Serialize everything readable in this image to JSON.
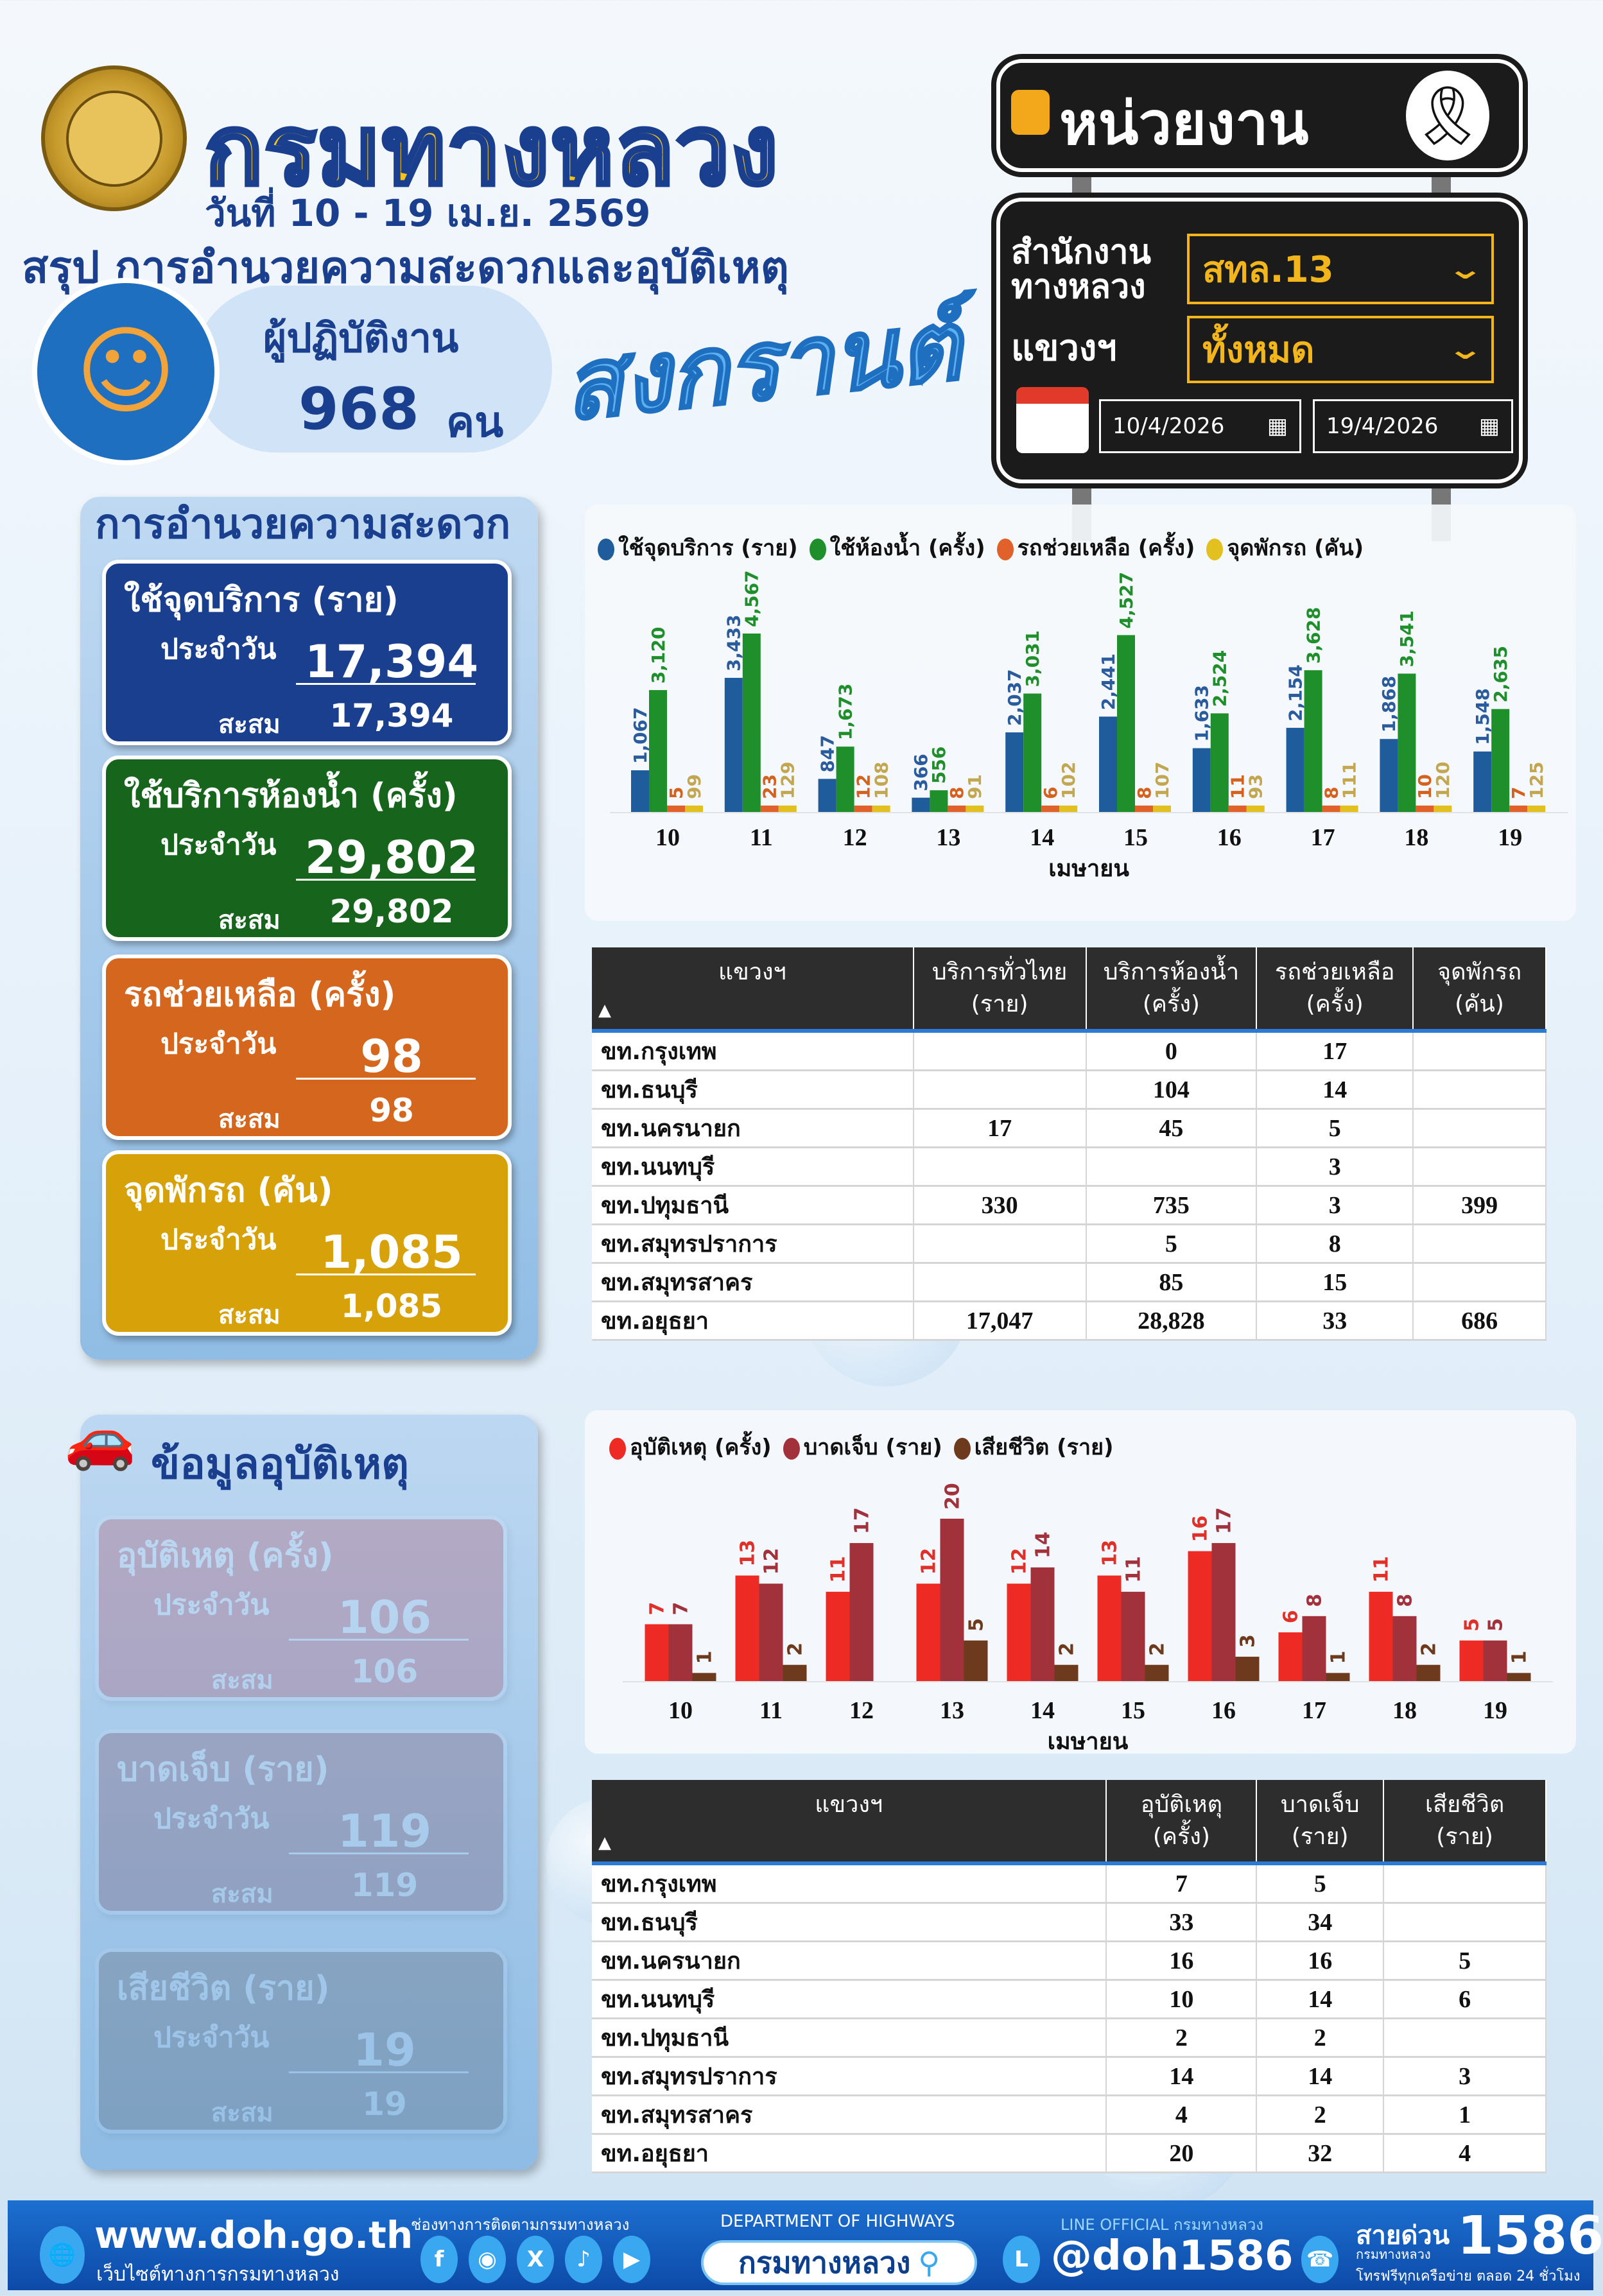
{
  "header": {
    "title": "กรมทางหลวง",
    "date_range": "วันที่ 10 - 19 เม.ย. 2569",
    "subtitle": "สรุป การอำนวยความสะดวกและอุบัติเหตุ",
    "staff_label": "ผู้ปฏิบัติงาน",
    "staff_count": "968",
    "staff_unit": "คน",
    "festival": "สงกรานต์"
  },
  "filter": {
    "panel_title": "หน่วยงาน",
    "office_label_1": "สำนักงาน",
    "office_label_2": "ทางหลวง",
    "office_value": "สทล.13",
    "district_label": "แขวงฯ",
    "district_value": "ทั้งหมด",
    "date_from": "10/4/2026",
    "date_to": "19/4/2026"
  },
  "service": {
    "section_title": "การอำนวยความสะดวก",
    "cards": [
      {
        "title": "ใช้จุดบริการ (ราย)",
        "daily_label": "ประจำวัน",
        "daily": "17,394",
        "cumulative_label": "สะสม",
        "cumulative": "17,394",
        "color": "#1a3f8f"
      },
      {
        "title": "ใช้บริการห้องน้ำ (ครั้ง)",
        "daily_label": "ประจำวัน",
        "daily": "29,802",
        "cumulative_label": "สะสม",
        "cumulative": "29,802",
        "color": "#17651c"
      },
      {
        "title": "รถช่วยเหลือ (ครั้ง)",
        "daily_label": "ประจำวัน",
        "daily": "98",
        "cumulative_label": "สะสม",
        "cumulative": "98",
        "color": "#d4661e"
      },
      {
        "title": "จุดพักรถ (คัน)",
        "daily_label": "ประจำวัน",
        "daily": "1,085",
        "cumulative_label": "สะสม",
        "cumulative": "1,085",
        "color": "#d7a10a"
      }
    ]
  },
  "accident": {
    "section_title": "ข้อมูลอุบัติเหตุ",
    "cards": [
      {
        "title": "อุบัติเหตุ (ครั้ง)",
        "daily_label": "ประจำวัน",
        "daily": "106",
        "cumulative_label": "สะสม",
        "cumulative": "106",
        "color": "#cf1414"
      },
      {
        "title": "บาดเจ็บ (ราย)",
        "daily_label": "ประจำวัน",
        "daily": "119",
        "cumulative_label": "สะสม",
        "cumulative": "119",
        "color": "#840e0e"
      },
      {
        "title": "เสียชีวิต (ราย)",
        "daily_label": "ประจำวัน",
        "daily": "19",
        "cumulative_label": "สะสม",
        "cumulative": "19",
        "color": "#5a2a0c"
      }
    ]
  },
  "chart_data": [
    {
      "type": "bar",
      "xlabel": "เมษายน",
      "ylabel": "",
      "categories": [
        "10",
        "11",
        "12",
        "13",
        "14",
        "15",
        "16",
        "17",
        "18",
        "19"
      ],
      "series": [
        {
          "name": "ใช้จุดบริการ (ราย)",
          "color": "#1f5c9c",
          "label_color": "#2a5b9c",
          "values": [
            1067,
            3433,
            847,
            366,
            2037,
            2441,
            1633,
            2154,
            1868,
            1548
          ]
        },
        {
          "name": "ใช้ห้องน้ำ (ครั้ง)",
          "color": "#1e8f2a",
          "label_color": "#1e8f2a",
          "values": [
            3120,
            4567,
            1673,
            556,
            3031,
            4527,
            2524,
            3628,
            3541,
            2635
          ]
        },
        {
          "name": "รถช่วยเหลือ (ครั้ง)",
          "color": "#e0622a",
          "label_color": "#d4621e",
          "values": [
            5,
            23,
            12,
            8,
            6,
            8,
            11,
            8,
            10,
            7
          ]
        },
        {
          "name": "จุดพักรถ (คัน)",
          "color": "#e2c020",
          "label_color": "#c2a650",
          "values": [
            99,
            129,
            108,
            91,
            102,
            107,
            93,
            111,
            120,
            125
          ]
        }
      ],
      "legend": "top-left"
    },
    {
      "type": "bar",
      "xlabel": "เมษายน",
      "ylabel": "",
      "categories": [
        "10",
        "11",
        "12",
        "13",
        "14",
        "15",
        "16",
        "17",
        "18",
        "19"
      ],
      "series": [
        {
          "name": "อุบัติเหตุ (ครั้ง)",
          "color": "#ee2a24",
          "label_color": "#e0302a",
          "values": [
            7,
            13,
            11,
            12,
            12,
            13,
            16,
            6,
            11,
            5
          ]
        },
        {
          "name": "บาดเจ็บ (ราย)",
          "color": "#a1313b",
          "label_color": "#a1313b",
          "values": [
            7,
            12,
            17,
            20,
            14,
            11,
            17,
            8,
            8,
            5
          ]
        },
        {
          "name": "เสียชีวิต (ราย)",
          "color": "#6e3a1e",
          "label_color": "#6e3a1e",
          "values": [
            1,
            2,
            0,
            5,
            2,
            2,
            3,
            1,
            2,
            1
          ]
        }
      ],
      "legend": "top-left"
    }
  ],
  "service_table": {
    "headers": [
      [
        "แขวงฯ",
        ""
      ],
      [
        "บริการทั่วไทย",
        "(ราย)"
      ],
      [
        "บริการห้องน้ำ",
        "(ครั้ง)"
      ],
      [
        "รถช่วยเหลือ",
        "(ครั้ง)"
      ],
      [
        "จุดพักรถ",
        "(คัน)"
      ]
    ],
    "rows": [
      [
        "ขท.กรุงเทพ",
        "",
        "0",
        "17",
        ""
      ],
      [
        "ขท.ธนบุรี",
        "",
        "104",
        "14",
        ""
      ],
      [
        "ขท.นครนายก",
        "17",
        "45",
        "5",
        ""
      ],
      [
        "ขท.นนทบุรี",
        "",
        "",
        "3",
        ""
      ],
      [
        "ขท.ปทุมธานี",
        "330",
        "735",
        "3",
        "399"
      ],
      [
        "ขท.สมุทรปราการ",
        "",
        "5",
        "8",
        ""
      ],
      [
        "ขท.สมุทรสาคร",
        "",
        "85",
        "15",
        ""
      ],
      [
        "ขท.อยุธยา",
        "17,047",
        "28,828",
        "33",
        "686"
      ]
    ]
  },
  "accident_table": {
    "headers": [
      [
        "แขวงฯ",
        ""
      ],
      [
        "อุบัติเหตุ",
        "(ครั้ง)"
      ],
      [
        "บาดเจ็บ",
        "(ราย)"
      ],
      [
        "เสียชีวิต",
        "(ราย)"
      ]
    ],
    "rows": [
      [
        "ขท.กรุงเทพ",
        "7",
        "5",
        ""
      ],
      [
        "ขท.ธนบุรี",
        "33",
        "34",
        ""
      ],
      [
        "ขท.นครนายก",
        "16",
        "16",
        "5"
      ],
      [
        "ขท.นนทบุรี",
        "10",
        "14",
        "6"
      ],
      [
        "ขท.ปทุมธานี",
        "2",
        "2",
        ""
      ],
      [
        "ขท.สมุทรปราการ",
        "14",
        "14",
        "3"
      ],
      [
        "ขท.สมุทรสาคร",
        "4",
        "2",
        "1"
      ],
      [
        "ขท.อยุธยา",
        "20",
        "32",
        "4"
      ]
    ]
  },
  "footer": {
    "website": "www.doh.go.th",
    "website_caption": "เว็บไซต์ทางการกรมทางหลวง",
    "social_caption": "ช่องทางการติดตามกรมทางหลวง",
    "social_icons": [
      "facebook-icon",
      "instagram-icon",
      "x-icon",
      "tiktok-icon",
      "youtube-icon"
    ],
    "dept_caption": "DEPARTMENT OF HIGHWAYS",
    "search_text": "กรมทางหลวง",
    "line_caption": "LINE OFFICIAL กรมทางหลวง",
    "line_id": "@doh1586",
    "hotline_label": "สายด่วน",
    "hotline_sub": "กรมทางหลวง",
    "hotline_number": "1586",
    "hotline_caption": "โทรฟรีทุกเครือข่าย ตลอด 24 ชั่วโมง"
  }
}
